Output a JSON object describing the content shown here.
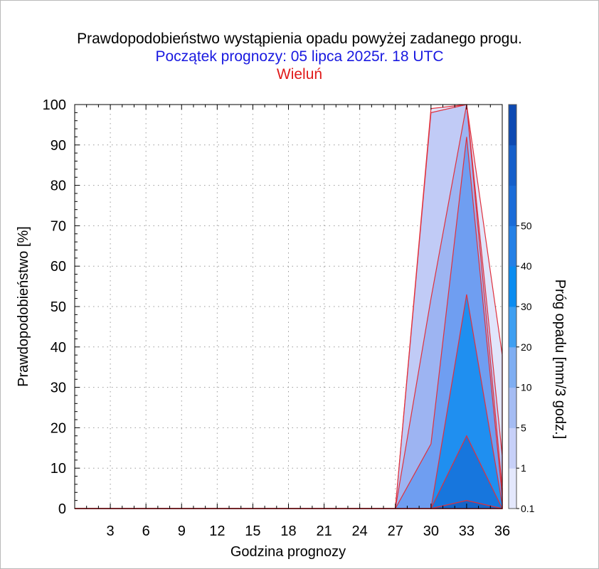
{
  "chart_data": {
    "type": "area",
    "title": "Prawdopodobieństwo wystąpienia opadu powyżej zadanego progu.",
    "subtitle": "Początek prognozy: 05 lipca 2025r. 18 UTC",
    "location": "Wieluń",
    "xlabel": "Godzina prognozy",
    "ylabel": "Prawdopodobieństwo [%]",
    "colorbar_label": "Próg opadu [mm/3 godz.]",
    "xlim": [
      0,
      36
    ],
    "ylim": [
      0,
      100
    ],
    "x_ticks": [
      3,
      6,
      9,
      12,
      15,
      18,
      21,
      24,
      27,
      30,
      33,
      36
    ],
    "y_ticks": [
      0,
      10,
      20,
      30,
      40,
      50,
      60,
      70,
      80,
      90,
      100
    ],
    "grid": true,
    "x": [
      0,
      3,
      6,
      9,
      12,
      15,
      18,
      21,
      24,
      27,
      30,
      33,
      36
    ],
    "series": [
      {
        "name": "0.1",
        "color": "#e1e5fb",
        "values": [
          0,
          0,
          0,
          0,
          0,
          0,
          0,
          0,
          0,
          0,
          99,
          100,
          38
        ]
      },
      {
        "name": "1",
        "color": "#c1cbf6",
        "values": [
          0,
          0,
          0,
          0,
          0,
          0,
          0,
          0,
          0,
          0,
          98,
          100,
          13
        ]
      },
      {
        "name": "5",
        "color": "#9db4f2",
        "values": [
          0,
          0,
          0,
          0,
          0,
          0,
          0,
          0,
          0,
          0,
          52,
          100,
          5
        ]
      },
      {
        "name": "10",
        "color": "#6f9ef1",
        "values": [
          0,
          0,
          0,
          0,
          0,
          0,
          0,
          0,
          0,
          0,
          16,
          92,
          3
        ]
      },
      {
        "name": "20",
        "color": "#1f8ff0",
        "values": [
          0,
          0,
          0,
          0,
          0,
          0,
          0,
          0,
          0,
          0,
          0,
          53,
          1
        ]
      },
      {
        "name": "30",
        "color": "#1776dd",
        "values": [
          0,
          0,
          0,
          0,
          0,
          0,
          0,
          0,
          0,
          0,
          0,
          18,
          0
        ]
      },
      {
        "name": "40",
        "color": "#1564c9",
        "values": [
          0,
          0,
          0,
          0,
          0,
          0,
          0,
          0,
          0,
          0,
          0,
          2,
          0
        ]
      }
    ],
    "colorbar": {
      "labels": [
        "0.1",
        "1",
        "5",
        "10",
        "20",
        "30",
        "40",
        "50"
      ],
      "colors": [
        "#e4e8fc",
        "#c7d0f8",
        "#a5bcf3",
        "#7faef2",
        "#3e9ff1",
        "#0a8cf0",
        "#2480e6",
        "#1a6cd8",
        "#155fca",
        "#0d49b2"
      ]
    }
  }
}
